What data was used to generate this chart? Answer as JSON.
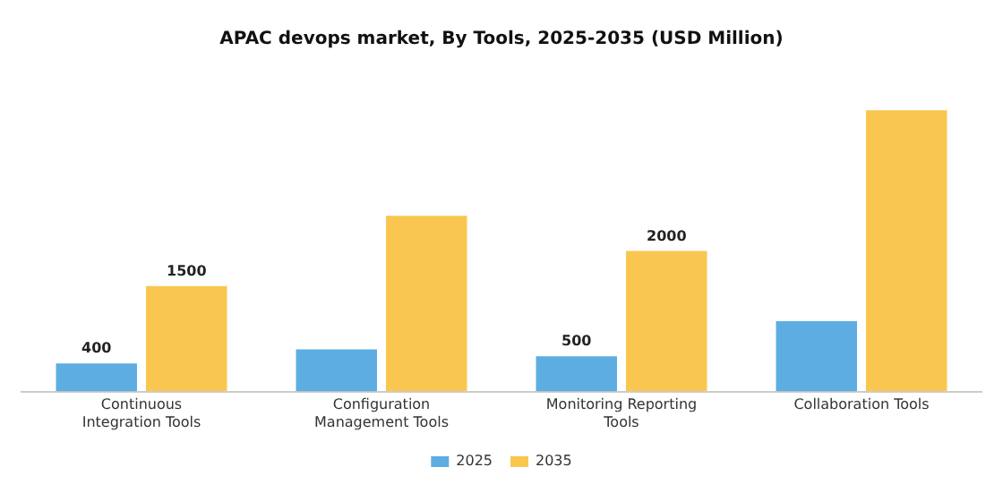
{
  "chart_data": {
    "type": "bar",
    "title": "APAC devops market, By Tools, 2025-2035 (USD Million)",
    "categories": [
      "Continuous\nIntegration Tools",
      "Configuration\nManagement Tools",
      "Monitoring Reporting\nTools",
      "Collaboration Tools"
    ],
    "series": [
      {
        "name": "2025",
        "color": "#5dade2",
        "values": [
          400,
          600,
          500,
          1000
        ],
        "value_labels": [
          "400",
          null,
          "500",
          null
        ]
      },
      {
        "name": "2035",
        "color": "#f9c74f",
        "values": [
          1500,
          2500,
          2000,
          4000
        ],
        "value_labels": [
          "1500",
          null,
          "2000",
          null
        ]
      }
    ],
    "legend": "bottom",
    "grid": false
  }
}
